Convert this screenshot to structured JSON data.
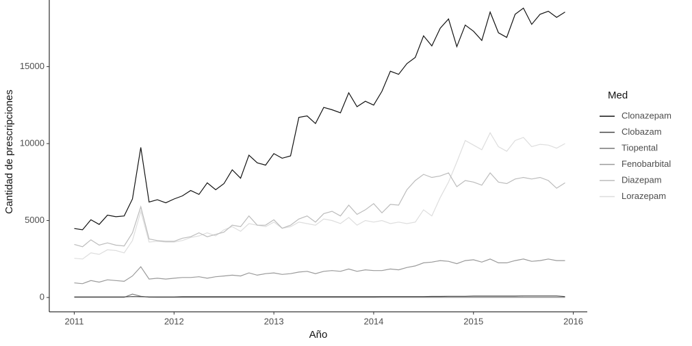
{
  "chart_data": {
    "type": "line",
    "x_label": "Año",
    "y_label": "Cantidad de prescripciones",
    "legend_title": "Med",
    "xlim": [
      2010.75,
      2016.14
    ],
    "ylim": [
      -930,
      19330
    ],
    "xticks": [
      2011,
      2012,
      2013,
      2014,
      2015,
      2016
    ],
    "yticks": [
      0,
      5000,
      10000,
      15000
    ],
    "x": [
      2011,
      2011.083,
      2011.167,
      2011.25,
      2011.333,
      2011.417,
      2011.5,
      2011.583,
      2011.667,
      2011.75,
      2011.833,
      2011.917,
      2012,
      2012.083,
      2012.167,
      2012.25,
      2012.333,
      2012.417,
      2012.5,
      2012.583,
      2012.667,
      2012.75,
      2012.833,
      2012.917,
      2013,
      2013.083,
      2013.167,
      2013.25,
      2013.333,
      2013.417,
      2013.5,
      2013.583,
      2013.667,
      2013.75,
      2013.833,
      2013.917,
      2014,
      2014.083,
      2014.167,
      2014.25,
      2014.333,
      2014.417,
      2014.5,
      2014.583,
      2014.667,
      2014.75,
      2014.833,
      2014.917,
      2015,
      2015.083,
      2015.167,
      2015.25,
      2015.333,
      2015.417,
      2015.5,
      2015.583,
      2015.667,
      2015.75,
      2015.833,
      2015.917
    ],
    "series": [
      {
        "name": "Clonazepam",
        "color": "#111111",
        "values": [
          4480,
          4400,
          5050,
          4750,
          5350,
          5250,
          5300,
          6400,
          9750,
          6200,
          6350,
          6150,
          6400,
          6600,
          6950,
          6700,
          7450,
          7000,
          7400,
          8300,
          7750,
          9250,
          8750,
          8600,
          9350,
          9050,
          9200,
          11700,
          11800,
          11300,
          12350,
          12200,
          12000,
          13300,
          12400,
          12750,
          12500,
          13400,
          14700,
          14500,
          15200,
          15600,
          17000,
          16350,
          17500,
          18100,
          16300,
          17700,
          17300,
          16700,
          18550,
          17200,
          16900,
          18400,
          18800,
          17750,
          18400,
          18600,
          18200,
          18550
        ]
      },
      {
        "name": "Clobazam",
        "color": "#444444",
        "values": [
          40,
          40,
          40,
          40,
          40,
          40,
          40,
          60,
          50,
          40,
          40,
          40,
          40,
          50,
          50,
          50,
          50,
          50,
          50,
          50,
          50,
          50,
          50,
          50,
          50,
          50,
          50,
          50,
          50,
          50,
          50,
          50,
          50,
          50,
          50,
          50,
          50,
          60,
          60,
          60,
          60,
          60,
          60,
          70,
          70,
          80,
          80,
          80,
          90,
          90,
          90,
          90,
          90,
          90,
          100,
          100,
          100,
          100,
          100,
          60
        ]
      },
      {
        "name": "Tiopental",
        "color": "#777777",
        "values": [
          10,
          10,
          10,
          10,
          10,
          10,
          10,
          220,
          80,
          20,
          10,
          10,
          10,
          10,
          10,
          10,
          10,
          10,
          10,
          10,
          10,
          10,
          10,
          10,
          10,
          10,
          10,
          10,
          10,
          10,
          10,
          10,
          10,
          10,
          10,
          10,
          10,
          10,
          10,
          10,
          10,
          10,
          10,
          10,
          10,
          10,
          10,
          10,
          10,
          10,
          10,
          10,
          10,
          10,
          10,
          10,
          10,
          10,
          10,
          10
        ]
      },
      {
        "name": "Fenobarbital",
        "color": "#999999",
        "values": [
          950,
          900,
          1100,
          1000,
          1150,
          1100,
          1050,
          1400,
          2000,
          1200,
          1250,
          1200,
          1250,
          1300,
          1300,
          1350,
          1250,
          1350,
          1400,
          1450,
          1400,
          1600,
          1450,
          1550,
          1600,
          1500,
          1550,
          1650,
          1700,
          1550,
          1700,
          1750,
          1700,
          1850,
          1700,
          1800,
          1750,
          1750,
          1850,
          1800,
          1950,
          2050,
          2250,
          2300,
          2400,
          2350,
          2200,
          2400,
          2450,
          2300,
          2500,
          2250,
          2250,
          2400,
          2500,
          2350,
          2400,
          2500,
          2400,
          2400
        ]
      },
      {
        "name": "Diazepam",
        "color": "#bbbbbb",
        "values": [
          3450,
          3300,
          3750,
          3400,
          3550,
          3400,
          3350,
          4200,
          5900,
          3800,
          3700,
          3650,
          3650,
          3850,
          3950,
          4200,
          3950,
          4100,
          4250,
          4700,
          4600,
          5300,
          4700,
          4700,
          5050,
          4500,
          4700,
          5100,
          5300,
          4900,
          5450,
          5600,
          5300,
          6000,
          5400,
          5700,
          6100,
          5500,
          6050,
          6000,
          7000,
          7600,
          8000,
          7800,
          7900,
          8100,
          7200,
          7600,
          7500,
          7300,
          8100,
          7500,
          7400,
          7700,
          7800,
          7700,
          7800,
          7600,
          7100,
          7450
        ]
      },
      {
        "name": "Lorazepam",
        "color": "#dddddd",
        "values": [
          2550,
          2500,
          2900,
          2800,
          3100,
          3050,
          2900,
          3700,
          5600,
          3600,
          3650,
          3600,
          3600,
          3700,
          3900,
          4000,
          4200,
          4000,
          4400,
          4600,
          4300,
          4800,
          4700,
          4600,
          4900,
          4500,
          4600,
          4900,
          4800,
          4700,
          5100,
          5000,
          4800,
          5200,
          4700,
          5000,
          4900,
          5000,
          4800,
          4900,
          4800,
          4900,
          5700,
          5300,
          6500,
          7500,
          8800,
          10200,
          9900,
          9600,
          10700,
          9800,
          9500,
          10200,
          10400,
          9800,
          9950,
          9900,
          9700,
          10000
        ]
      }
    ]
  }
}
